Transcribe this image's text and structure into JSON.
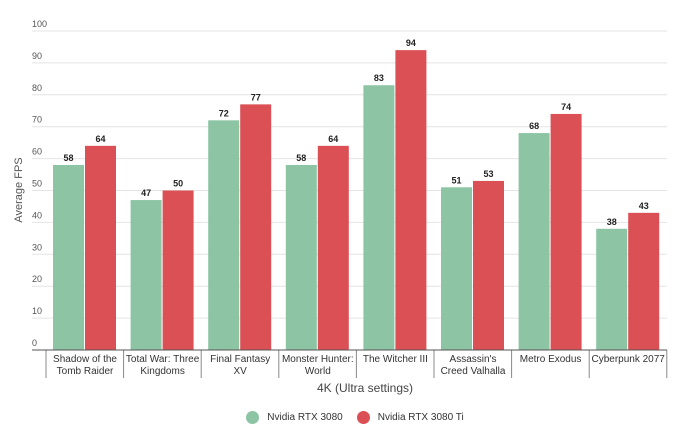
{
  "chart_data": {
    "type": "bar",
    "title": "",
    "xlabel": "4K (Ultra settings)",
    "ylabel": "Average FPS",
    "ylim": [
      0,
      100
    ],
    "yticks": [
      0,
      10,
      20,
      30,
      40,
      50,
      60,
      70,
      80,
      90,
      100
    ],
    "grid": true,
    "legend_position": "bottom",
    "categories": [
      "Shadow of the Tomb Raider",
      "Total War: Three Kingdoms",
      "Final Fantasy XV",
      "Monster Hunter: World",
      "The Witcher III",
      "Assassin's Creed Valhalla",
      "Metro Exodus",
      "Cyberpunk 2077"
    ],
    "series": [
      {
        "name": "Nvidia RTX 3080",
        "color": "#8cc4a4",
        "values": [
          58,
          47,
          72,
          58,
          83,
          51,
          68,
          38
        ]
      },
      {
        "name": "Nvidia RTX 3080 Ti",
        "color": "#da5054",
        "values": [
          64,
          50,
          77,
          64,
          94,
          53,
          74,
          43
        ]
      }
    ]
  }
}
